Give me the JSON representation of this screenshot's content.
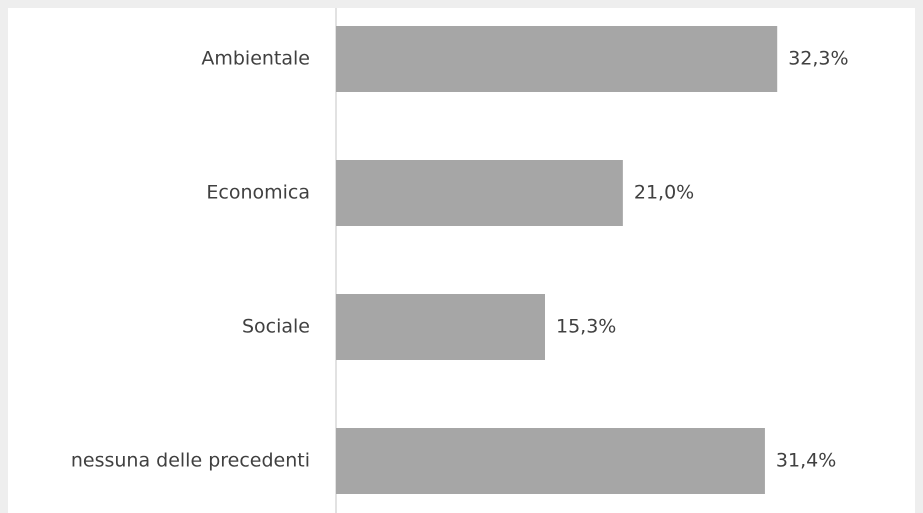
{
  "chart_data": {
    "type": "bar",
    "orientation": "horizontal",
    "categories": [
      "Ambientale",
      "Economica",
      "Sociale",
      "nessuna delle precedenti"
    ],
    "values": [
      32.3,
      21.0,
      15.3,
      31.4
    ],
    "value_labels": [
      "32,3%",
      "21,0%",
      "15,3%",
      "31,4%"
    ],
    "color": "#a6a6a6"
  }
}
